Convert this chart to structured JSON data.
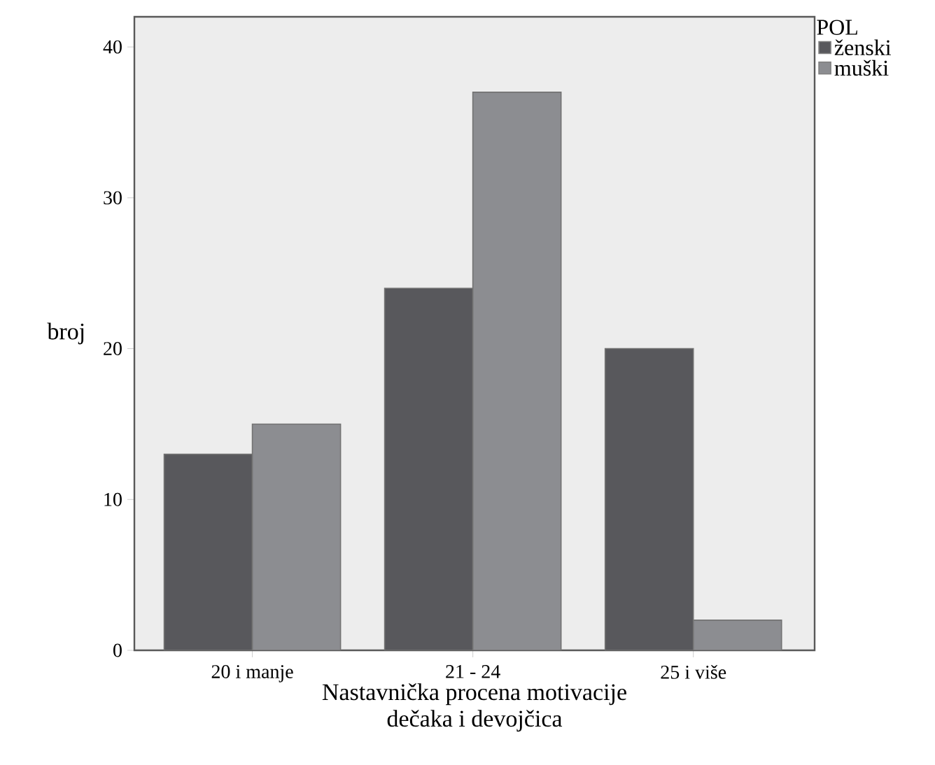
{
  "chart_data": {
    "type": "bar",
    "xlabel": "Nastavnička procena motivacije dečaka i devojčica",
    "ylabel": "broj",
    "legend_title": "POL",
    "categories": [
      "20 i manje",
      "21 - 24",
      "25 i više"
    ],
    "series": [
      {
        "name": "ženski",
        "color": "#58585c",
        "values": [
          13,
          24,
          20
        ]
      },
      {
        "name": "muški",
        "color": "#8c8d91",
        "values": [
          15,
          37,
          2
        ]
      }
    ],
    "ylim": [
      0,
      42
    ],
    "yticks": [
      0,
      10,
      20,
      30,
      40
    ],
    "legend": "top right",
    "grid": false
  }
}
